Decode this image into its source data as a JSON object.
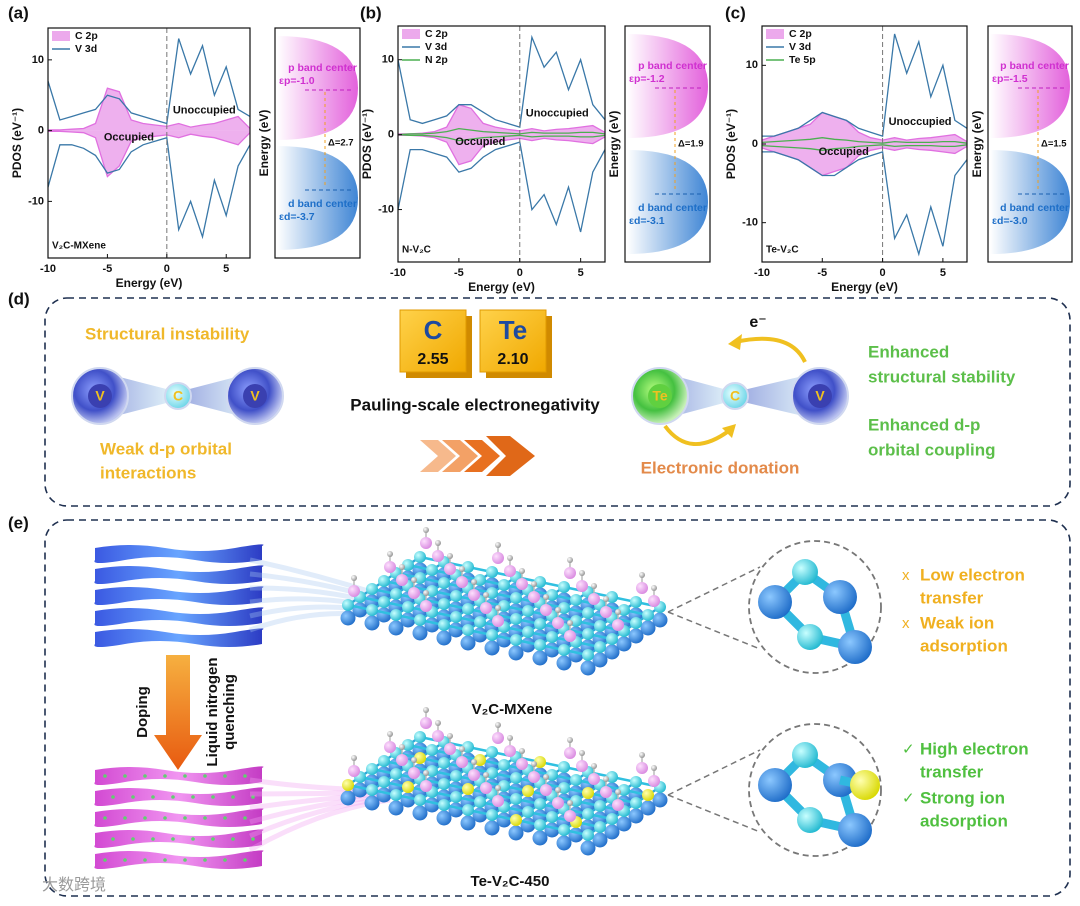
{
  "chart_data": [
    {
      "type": "line",
      "label": "(a)",
      "sample": "V₂C-MXene",
      "xlabel": "Energy (eV)",
      "ylabel": "PDOS (eV⁻¹)",
      "x": [
        -10,
        -9,
        -8,
        -7,
        -6,
        -5,
        -4,
        -3,
        -2,
        -1,
        0,
        1,
        2,
        3,
        4,
        5,
        6,
        7
      ],
      "xlim": [
        -10,
        7
      ],
      "xticks": [
        -10,
        -5,
        0,
        5
      ],
      "ylim": [
        -18,
        14.5
      ],
      "yticks": [
        -10,
        0,
        10
      ],
      "annotations": [
        "Unoccupied",
        "Occupied"
      ],
      "series": [
        {
          "name": "C 2p",
          "color": "#e070e0",
          "fill": true,
          "values": [
            0.1,
            0.1,
            0.2,
            0.3,
            1,
            6,
            5.5,
            1.5,
            1,
            0.8,
            0.6,
            1,
            0.5,
            0.8,
            1,
            1.5,
            2,
            0.3
          ],
          "values_down": [
            -0.1,
            -0.1,
            -0.2,
            -0.3,
            -1,
            -6.5,
            -5,
            -1.5,
            -1,
            -0.8,
            -0.6,
            -1,
            -0.5,
            -0.8,
            -1,
            -1.5,
            -2,
            -0.3
          ]
        },
        {
          "name": "V 3d",
          "color": "#3a78a8",
          "fill": false,
          "values": [
            7,
            1.5,
            2,
            2.5,
            3,
            5,
            4.5,
            2.5,
            2,
            1.5,
            1,
            13,
            8,
            12,
            5,
            9,
            3,
            2
          ],
          "values_down": [
            -8,
            -2,
            -2,
            -2.5,
            -3.5,
            -6,
            -5.5,
            -3,
            -2,
            -1.5,
            -1,
            -14,
            -10,
            -15,
            -7,
            -12,
            -5,
            -2
          ]
        }
      ],
      "band_centers": {
        "ylabel": "Energy (eV)",
        "p_label": "p band center",
        "p_value": "εp=-1.0",
        "gap": "Δ=2.7",
        "d_label": "d band center",
        "d_value": "εd=-3.7"
      }
    },
    {
      "type": "line",
      "label": "(b)",
      "sample": "N-V₂C",
      "xlabel": "Energy (eV)",
      "ylabel": "PDOS (eV⁻¹)",
      "x": [
        -10,
        -9,
        -8,
        -7,
        -6,
        -5,
        -4,
        -3,
        -2,
        -1,
        0,
        1,
        2,
        3,
        4,
        5,
        6,
        7
      ],
      "xlim": [
        -10,
        7
      ],
      "xticks": [
        -10,
        -5,
        0,
        5
      ],
      "ylim": [
        -17,
        14.5
      ],
      "yticks": [
        -10,
        0,
        10
      ],
      "annotations": [
        "Unoccupied",
        "Occupied"
      ],
      "series": [
        {
          "name": "C 2p",
          "color": "#e070e0",
          "fill": true,
          "values": [
            0.1,
            0.1,
            0.2,
            0.4,
            1,
            4,
            3.5,
            1.5,
            1,
            0.7,
            0.5,
            0.8,
            0.5,
            0.7,
            0.8,
            1,
            1.2,
            0.3
          ],
          "values_down": [
            -0.1,
            -0.1,
            -0.2,
            -0.4,
            -1,
            -4,
            -3.5,
            -1.5,
            -1,
            -0.7,
            -0.5,
            -0.8,
            -0.5,
            -0.7,
            -0.8,
            -1,
            -1.2,
            -0.3
          ]
        },
        {
          "name": "V 3d",
          "color": "#3a78a8",
          "fill": false,
          "values": [
            10,
            2,
            1.5,
            2,
            2.5,
            4,
            4,
            3,
            2,
            1.5,
            1,
            13,
            9,
            11,
            6,
            10,
            4,
            2
          ],
          "values_down": [
            -10,
            -2,
            -2,
            -2.5,
            -3,
            -5,
            -4.5,
            -3,
            -2,
            -1.5,
            -1,
            -10,
            -8,
            -12,
            -7,
            -13,
            -5,
            -2
          ]
        },
        {
          "name": "N 2p",
          "color": "#4caf50",
          "fill": false,
          "values": [
            0,
            0.1,
            0.1,
            0.2,
            0.4,
            0.8,
            0.6,
            0.4,
            0.3,
            0.2,
            0.1,
            0.3,
            0.2,
            0.2,
            0.2,
            0.3,
            0.3,
            0.1
          ],
          "values_down": [
            0,
            -0.1,
            -0.1,
            -0.2,
            -0.4,
            -0.8,
            -0.6,
            -0.4,
            -0.3,
            -0.2,
            -0.1,
            -0.3,
            -0.2,
            -0.2,
            -0.2,
            -0.3,
            -0.3,
            -0.1
          ]
        }
      ],
      "band_centers": {
        "ylabel": "Energy (eV)",
        "p_label": "p band center",
        "p_value": "εp=-1.2",
        "gap": "Δ=1.9",
        "d_label": "d band center",
        "d_value": "εd=-3.1"
      }
    },
    {
      "type": "line",
      "label": "(c)",
      "sample": "Te-V₂C",
      "xlabel": "Energy (eV)",
      "ylabel": "PDOS (eV⁻¹)",
      "x": [
        -10,
        -9,
        -8,
        -7,
        -6,
        -5,
        -4,
        -3,
        -2,
        -1,
        0,
        1,
        2,
        3,
        4,
        5,
        6,
        7
      ],
      "xlim": [
        -10,
        7
      ],
      "xticks": [
        -10,
        -5,
        0,
        5
      ],
      "ylim": [
        -15,
        15
      ],
      "yticks": [
        -10,
        0,
        10
      ],
      "annotations": [
        "Unoccupied",
        "Occupied"
      ],
      "series": [
        {
          "name": "C 2p",
          "color": "#e070e0",
          "fill": true,
          "values": [
            0.5,
            1,
            1.5,
            2,
            2.5,
            4,
            3.5,
            3,
            1.5,
            0.8,
            0.5,
            0.8,
            0.5,
            0.7,
            0.8,
            1,
            1.2,
            0.3
          ],
          "values_down": [
            -0.5,
            -1,
            -1.5,
            -2,
            -3,
            -4,
            -3.5,
            -3,
            -1.5,
            -0.8,
            -0.5,
            -0.8,
            -0.5,
            -0.7,
            -0.8,
            -1,
            -1.2,
            -0.3
          ]
        },
        {
          "name": "V 3d",
          "color": "#3a78a8",
          "fill": false,
          "values": [
            1,
            1,
            1.5,
            2,
            3,
            4,
            3.5,
            3,
            2,
            1.5,
            1,
            14,
            9,
            13,
            6,
            10,
            3,
            2
          ],
          "values_down": [
            -1,
            -1,
            -1.5,
            -2,
            -3,
            -4,
            -4,
            -3,
            -2,
            -1.5,
            -1,
            -12,
            -9,
            -14,
            -8,
            -13,
            -4,
            -2
          ]
        },
        {
          "name": "Te 5p",
          "color": "#4caf50",
          "fill": false,
          "values": [
            0.2,
            0.3,
            0.4,
            0.5,
            0.6,
            0.8,
            0.6,
            0.5,
            0.3,
            0.2,
            0.1,
            0.3,
            0.2,
            0.2,
            0.2,
            0.3,
            0.3,
            0.1
          ],
          "values_down": [
            -0.2,
            -0.3,
            -0.4,
            -0.5,
            -0.6,
            -0.8,
            -0.6,
            -0.5,
            -0.3,
            -0.2,
            -0.1,
            -0.3,
            -0.2,
            -0.2,
            -0.2,
            -0.3,
            -0.3,
            -0.1
          ]
        }
      ],
      "band_centers": {
        "ylabel": "Energy (eV)",
        "p_label": "p band center",
        "p_value": "εp=-1.5",
        "gap": "Δ=1.5",
        "d_label": "d band center",
        "d_value": "εd=-3.0"
      }
    }
  ],
  "panel_d": {
    "label": "(d)",
    "left_title": "Structural instability",
    "left_atoms": [
      "V",
      "C",
      "V"
    ],
    "left_note": [
      "Weak d-p orbital",
      "interactions"
    ],
    "elements": [
      {
        "symbol": "C",
        "value": "2.55"
      },
      {
        "symbol": "Te",
        "value": "2.10"
      }
    ],
    "scale_label": "Pauling-scale electronegativity",
    "electron": "e⁻",
    "right_atoms": [
      "Te",
      "C",
      "V"
    ],
    "donation": "Electronic donation",
    "right_notes": [
      [
        "Enhanced",
        "structural stability"
      ],
      [
        "Enhanced d-p",
        "orbital coupling"
      ]
    ]
  },
  "panel_e": {
    "label": "(e)",
    "doping": "Doping",
    "quenching": [
      "Liquid nitrogen",
      "quenching"
    ],
    "structures": [
      "V₂C-MXene",
      "Te-V₂C-450"
    ],
    "pristine_notes": [
      {
        "mark": "x",
        "lines": [
          "Low electron",
          "transfer"
        ]
      },
      {
        "mark": "x",
        "lines": [
          "Weak ion",
          "adsorption"
        ]
      }
    ],
    "doped_notes": [
      {
        "mark": "✓",
        "lines": [
          "High electron",
          "transfer"
        ]
      },
      {
        "mark": "✓",
        "lines": [
          "Strong ion",
          "adsorption"
        ]
      }
    ]
  },
  "watermark": "大数跨境"
}
